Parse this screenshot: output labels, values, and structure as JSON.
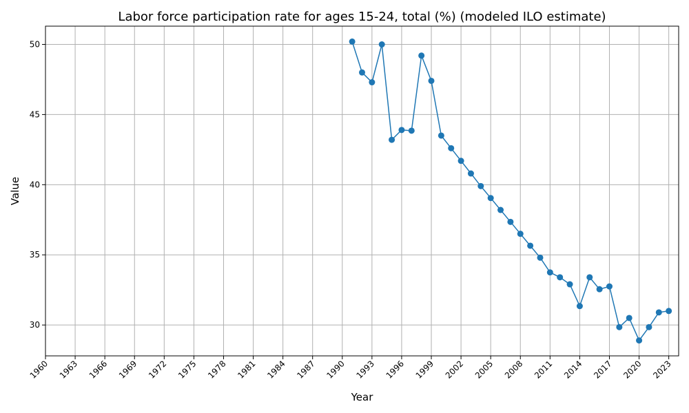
{
  "chart_data": {
    "type": "line",
    "title": "Labor force participation rate for ages 15-24, total (%) (modeled ILO estimate)",
    "xlabel": "Year",
    "ylabel": "Value",
    "xlim": [
      1960,
      2024
    ],
    "ylim": [
      27.8,
      51.3
    ],
    "x_ticks": [
      "1960",
      "1963",
      "1966",
      "1969",
      "1972",
      "1975",
      "1978",
      "1981",
      "1984",
      "1987",
      "1990",
      "1993",
      "1996",
      "1999",
      "2002",
      "2005",
      "2008",
      "2011",
      "2014",
      "2017",
      "2020",
      "2023"
    ],
    "y_ticks": [
      "30",
      "35",
      "40",
      "45",
      "50"
    ],
    "grid": true,
    "color": "#1f77b4",
    "x": [
      1991,
      1992,
      1993,
      1994,
      1995,
      1996,
      1997,
      1998,
      1999,
      2000,
      2001,
      2002,
      2003,
      2004,
      2005,
      2006,
      2007,
      2008,
      2009,
      2010,
      2011,
      2012,
      2013,
      2014,
      2015,
      2016,
      2017,
      2018,
      2019,
      2020,
      2021,
      2022,
      2023
    ],
    "values": [
      50.2,
      48.0,
      47.3,
      50.0,
      43.2,
      43.9,
      43.85,
      49.2,
      47.4,
      43.5,
      42.6,
      41.7,
      40.8,
      39.9,
      39.05,
      38.2,
      37.35,
      36.5,
      35.65,
      34.8,
      33.75,
      33.4,
      32.9,
      31.35,
      33.4,
      32.55,
      32.75,
      29.85,
      30.5,
      28.9,
      29.85,
      30.9,
      31.0
    ]
  }
}
